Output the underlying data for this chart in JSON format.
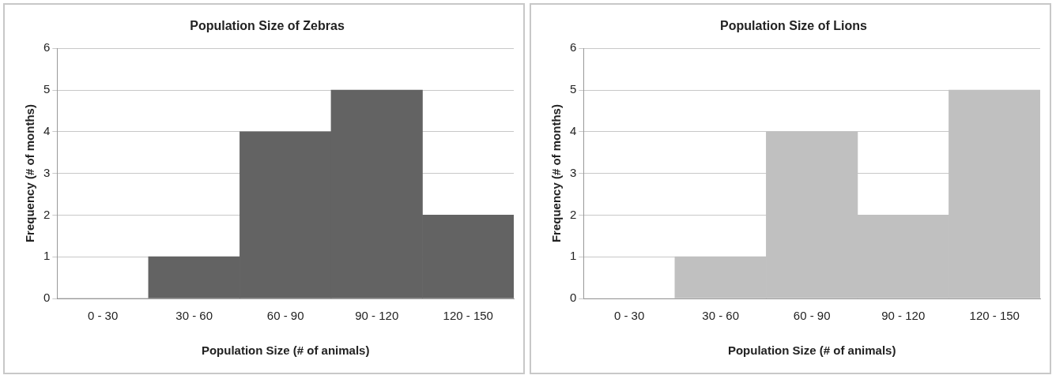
{
  "chart_data": [
    {
      "type": "bar",
      "title": "Population Size of Zebras",
      "xlabel": "Population Size (# of animals)",
      "ylabel": "Frequency (# of months)",
      "categories": [
        "0 - 30",
        "30 - 60",
        "60 - 90",
        "90 - 120",
        "120 - 150"
      ],
      "values": [
        0,
        1,
        4,
        5,
        2
      ],
      "color": "#636363",
      "ylim": [
        0,
        6
      ],
      "yticks": [
        0,
        1,
        2,
        3,
        4,
        5,
        6
      ],
      "grid": "y",
      "legend": false
    },
    {
      "type": "bar",
      "title": "Population Size of Lions",
      "xlabel": "Population Size (# of animals)",
      "ylabel": "Frequency (# of months)",
      "categories": [
        "0 - 30",
        "30 - 60",
        "60 - 90",
        "90 - 120",
        "120 - 150"
      ],
      "values": [
        0,
        1,
        4,
        2,
        5
      ],
      "color": "#c0c0c0",
      "ylim": [
        0,
        6
      ],
      "yticks": [
        0,
        1,
        2,
        3,
        4,
        5,
        6
      ],
      "grid": "y",
      "legend": false
    }
  ]
}
